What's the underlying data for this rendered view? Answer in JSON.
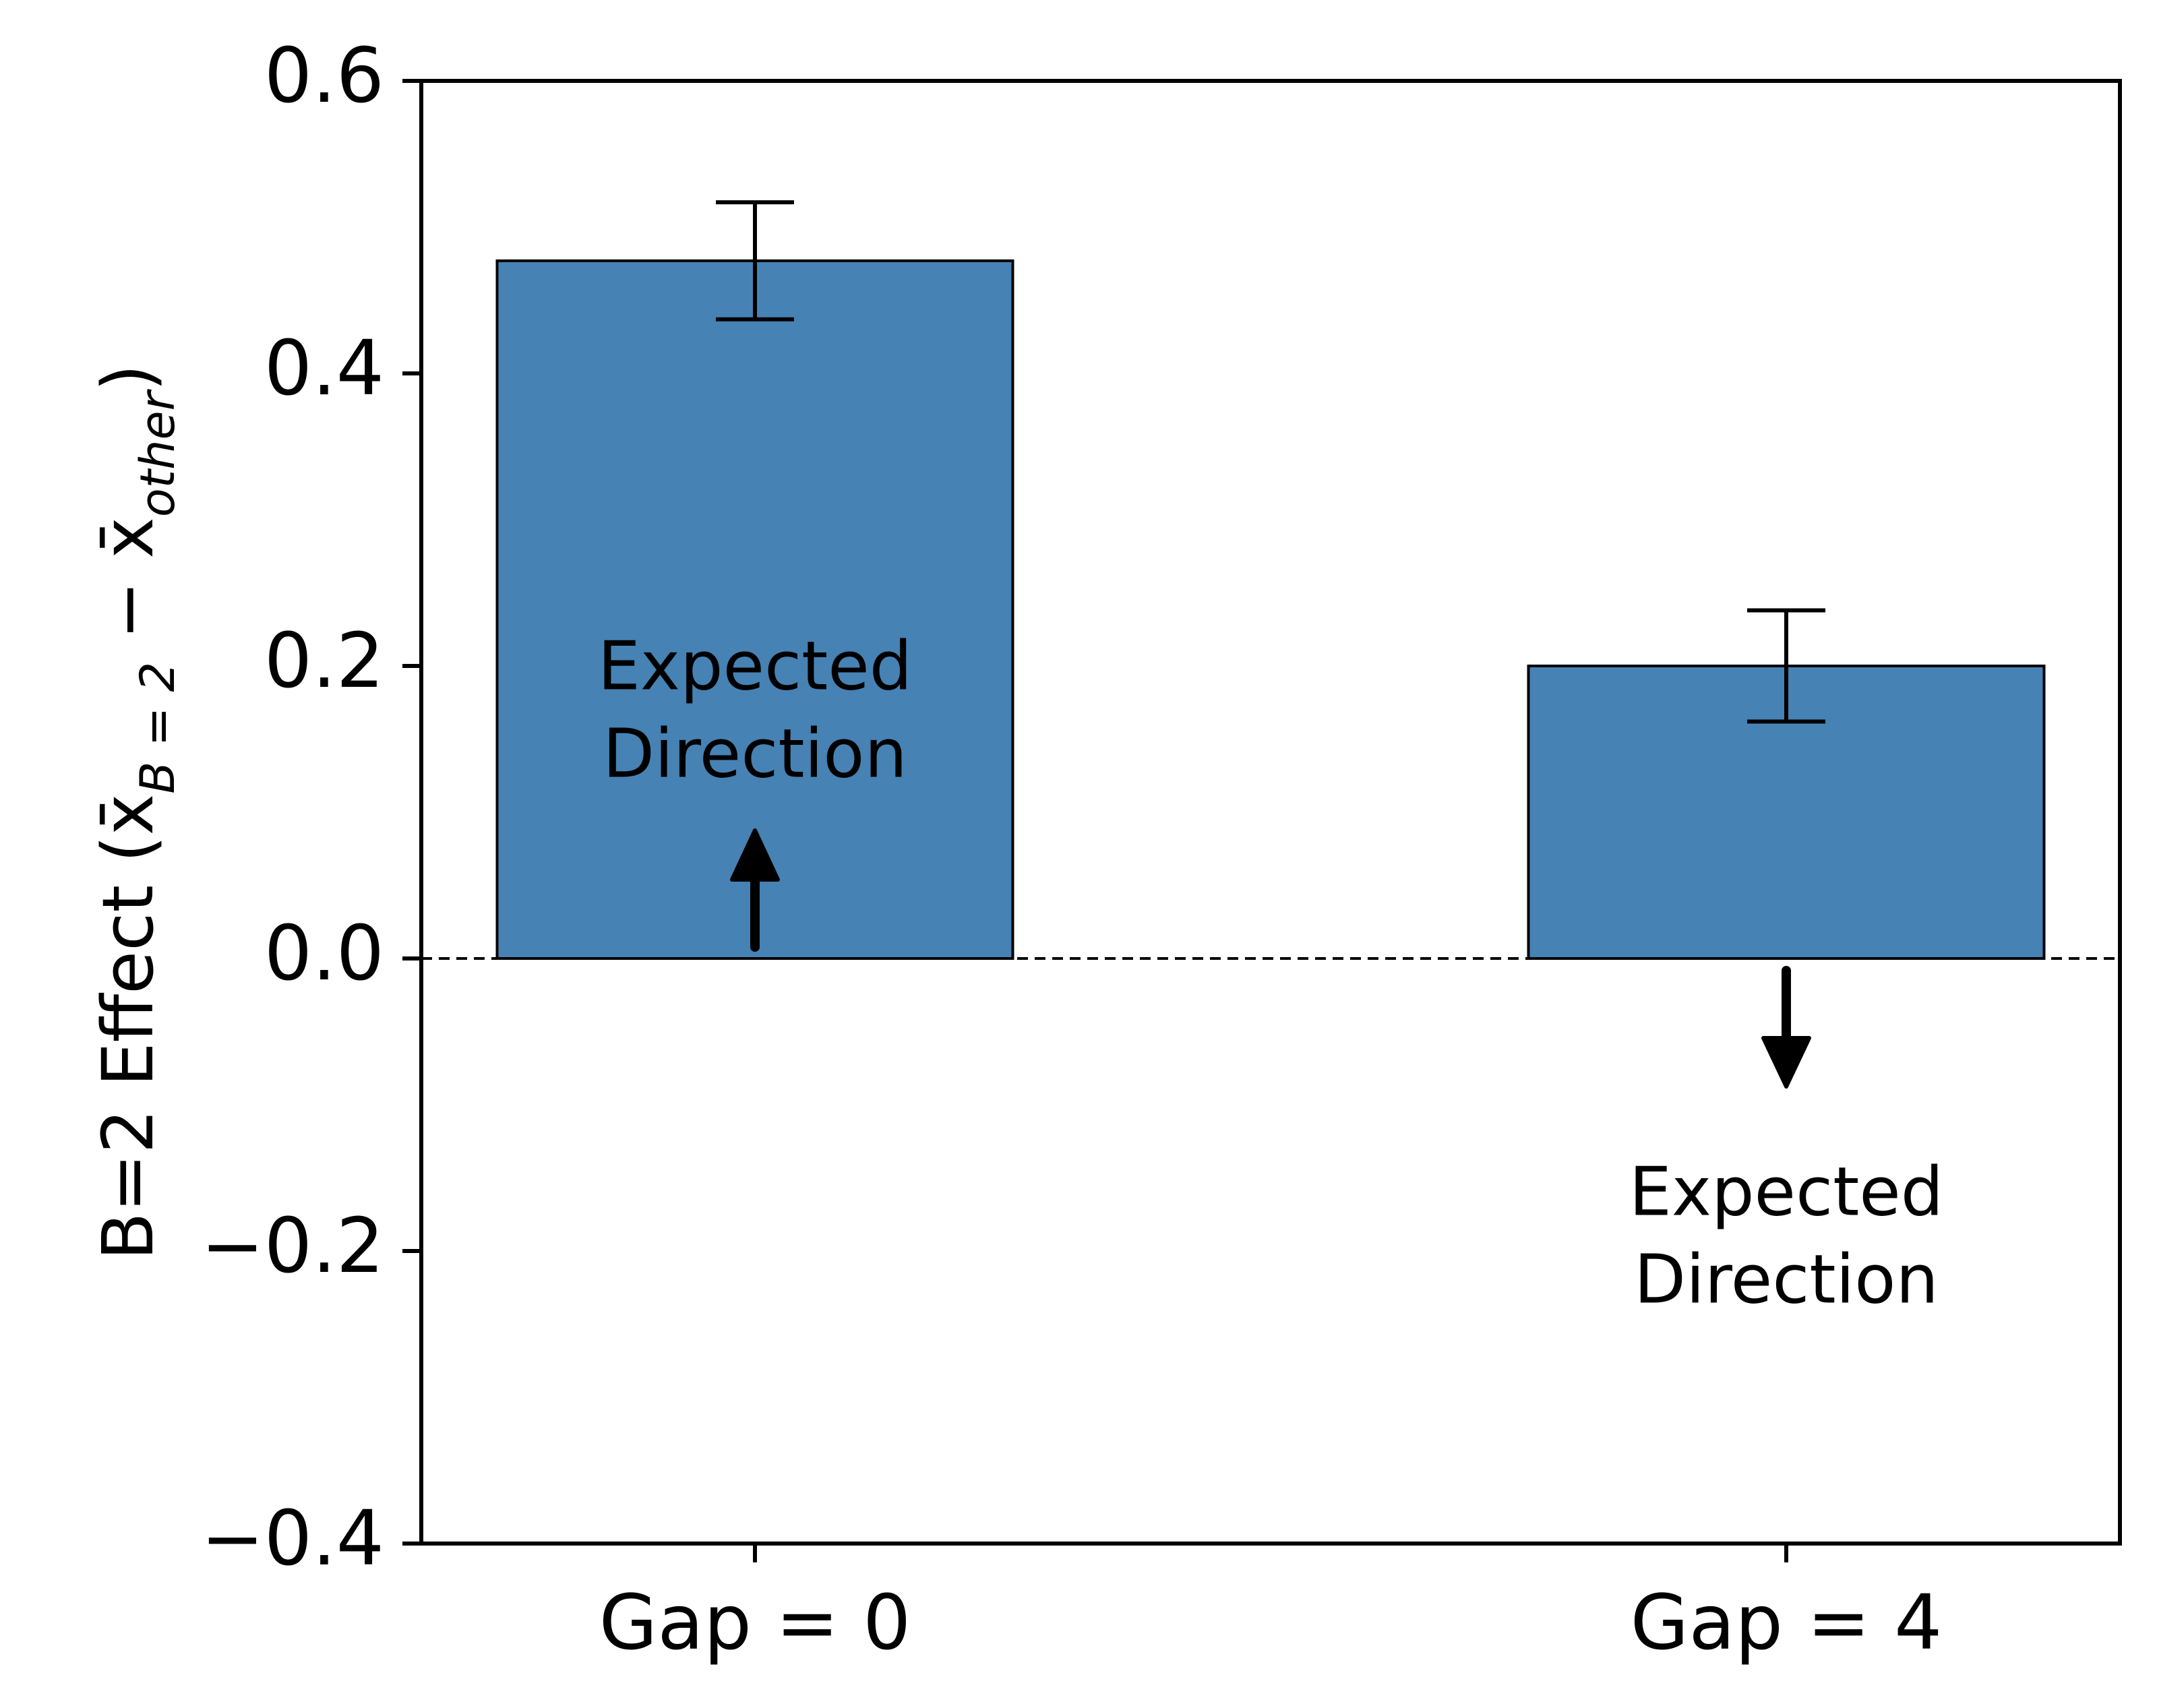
{
  "chart_data": {
    "type": "bar",
    "categories": [
      "Gap = 0",
      "Gap = 4"
    ],
    "values": [
      0.477,
      0.2
    ],
    "errors": [
      0.04,
      0.038
    ],
    "ylabel_parts": {
      "prefix": "B=2 Effect (",
      "x1": "x̄",
      "sub1": "B = 2",
      "minus": " − ",
      "x2": "x̄",
      "sub2": "other",
      "suffix": ")"
    },
    "ylim": [
      -0.4,
      0.6
    ],
    "yticks": [
      -0.4,
      -0.2,
      0.0,
      0.2,
      0.4,
      0.6
    ],
    "ytick_labels": [
      "−0.4",
      "−0.2",
      "0.0",
      "0.2",
      "0.4",
      "0.6"
    ],
    "reference_line": 0.0,
    "bar_color": "#4682b4",
    "annotations": [
      {
        "category": "Gap = 0",
        "line1": "Expected",
        "line2": "Direction",
        "arrow": "up",
        "placement": "inside-bar"
      },
      {
        "category": "Gap = 4",
        "line1": "Expected",
        "line2": "Direction",
        "arrow": "down",
        "placement": "below-zero"
      }
    ],
    "grid": false,
    "legend": "none"
  }
}
